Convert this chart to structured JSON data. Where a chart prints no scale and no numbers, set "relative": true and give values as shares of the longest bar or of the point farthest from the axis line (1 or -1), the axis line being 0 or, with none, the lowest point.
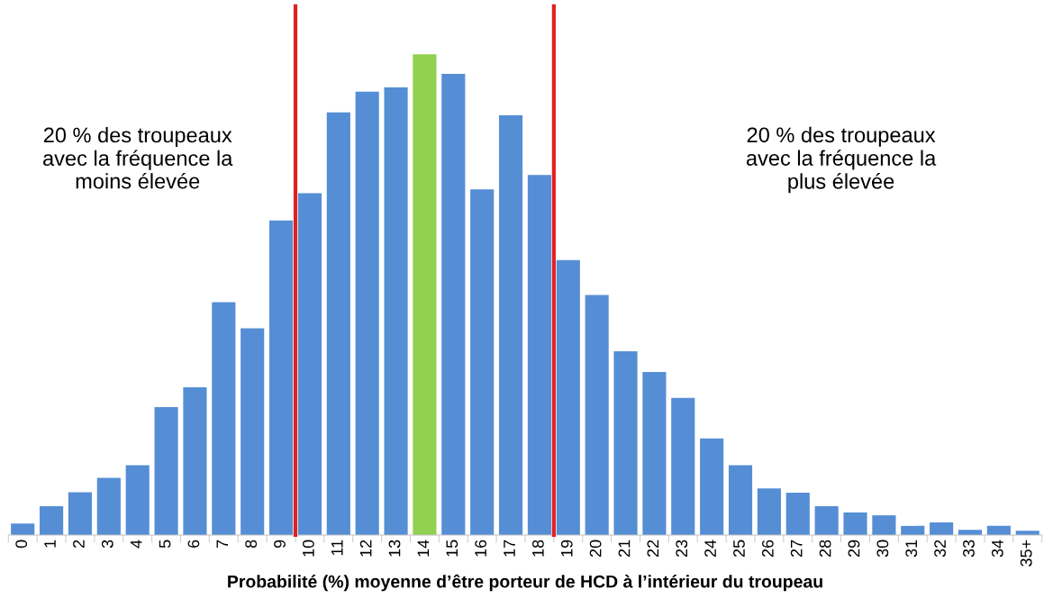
{
  "chart_data": {
    "type": "bar",
    "relative": true,
    "categories": [
      "0",
      "1",
      "2",
      "3",
      "4",
      "5",
      "6",
      "7",
      "8",
      "9",
      "10",
      "11",
      "12",
      "13",
      "14",
      "15",
      "16",
      "17",
      "18",
      "19",
      "20",
      "21",
      "22",
      "23",
      "24",
      "25",
      "26",
      "27",
      "28",
      "29",
      "30",
      "31",
      "32",
      "33",
      "34",
      "35+"
    ],
    "values": [
      0.024,
      0.06,
      0.089,
      0.119,
      0.145,
      0.266,
      0.307,
      0.484,
      0.43,
      0.654,
      0.711,
      0.879,
      0.922,
      0.931,
      1,
      0.959,
      0.719,
      0.873,
      0.749,
      0.572,
      0.499,
      0.382,
      0.339,
      0.285,
      0.201,
      0.145,
      0.097,
      0.088,
      0.06,
      0.047,
      0.041,
      0.019,
      0.026,
      0.011,
      0.019,
      0.009
    ],
    "colors": [
      "#558ed5",
      "#558ed5",
      "#558ed5",
      "#558ed5",
      "#558ed5",
      "#558ed5",
      "#558ed5",
      "#558ed5",
      "#558ed5",
      "#558ed5",
      "#558ed5",
      "#558ed5",
      "#558ed5",
      "#558ed5",
      "#92d050",
      "#558ed5",
      "#558ed5",
      "#558ed5",
      "#558ed5",
      "#558ed5",
      "#558ed5",
      "#558ed5",
      "#558ed5",
      "#558ed5",
      "#558ed5",
      "#558ed5",
      "#558ed5",
      "#558ed5",
      "#558ed5",
      "#558ed5",
      "#558ed5",
      "#558ed5",
      "#558ed5",
      "#558ed5",
      "#558ed5",
      "#558ed5"
    ],
    "xlabel": "Probabilité (%) moyenne d’être porteur de HCD à l’intérieur du troupeau",
    "annotations": [
      "20 % des troupeaux\navec la fréquence la\nmoins élevée",
      "20 % des troupeaux\navec la fréquence la\nplus élevée"
    ],
    "grid": false,
    "legend": false
  }
}
